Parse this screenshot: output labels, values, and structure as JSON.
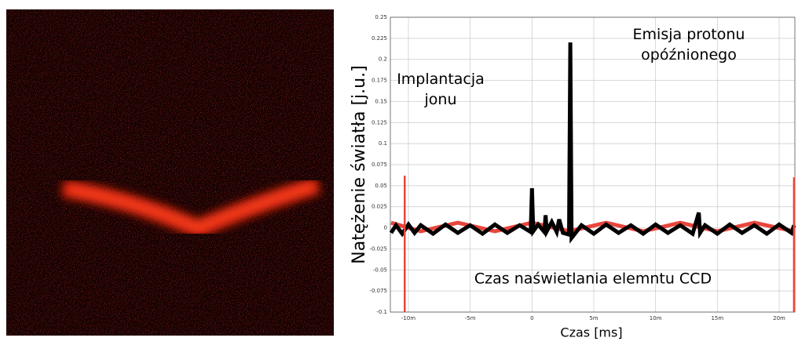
{
  "chart_data": {
    "type": "line",
    "xlabel": "Czas [ms]",
    "ylabel": "Natężenie światła [j.u.]",
    "annotations": [
      "Emisja protonu\nopóźnionego",
      "Implantacja\njonu",
      "Czas naświetlania elemntu CCD"
    ],
    "xlim": [
      -11.46,
      21.27
    ],
    "ylim": [
      -0.1,
      0.25
    ],
    "xticks": [
      {
        "value": -10,
        "label": "-10m"
      },
      {
        "value": -5,
        "label": "-5m"
      },
      0,
      {
        "value": 5,
        "label": "5m"
      },
      {
        "value": 10,
        "label": "10m"
      },
      {
        "value": 15,
        "label": "15m"
      },
      {
        "value": 20,
        "label": "20m"
      }
    ],
    "yticks": [
      -0.1,
      -0.075,
      -0.05,
      -0.025,
      0,
      0.025,
      0.05,
      0.075,
      0.1,
      0.125,
      0.15,
      0.175,
      0.2,
      0.225,
      0.25
    ],
    "grid": true,
    "series": [
      {
        "color": "#e8463c",
        "x": [
          -11.4,
          -9,
          -6,
          -3,
          0,
          3,
          6,
          9,
          12,
          15,
          18,
          21.2
        ],
        "values": [
          0.006,
          -0.004,
          0.006,
          -0.004,
          0.006,
          -0.004,
          0.006,
          -0.004,
          0.006,
          -0.004,
          0.006,
          -0.004
        ]
      },
      {
        "color": "#000000",
        "x": [
          -11.4,
          -11,
          -10.5,
          -10,
          -9.5,
          -9,
          -8,
          -7,
          -6,
          -5,
          -4,
          -3,
          -2,
          -1,
          -0.1,
          0,
          0.1,
          0.5,
          1,
          1.1,
          1.2,
          1.6,
          2,
          2.2,
          2.5,
          3.0,
          3.1,
          3.2,
          4,
          5,
          6,
          7,
          8,
          9,
          10,
          11,
          12,
          13,
          13.5,
          13.6,
          14,
          15,
          16,
          17,
          18,
          19,
          20,
          21,
          21.2
        ],
        "values": [
          -0.006,
          0.003,
          -0.007,
          0.004,
          -0.006,
          0.003,
          -0.007,
          0.004,
          -0.006,
          0.003,
          -0.007,
          0.004,
          -0.006,
          0.003,
          -0.005,
          0.047,
          -0.004,
          0.004,
          -0.005,
          0.015,
          -0.004,
          0.007,
          -0.005,
          0.01,
          -0.006,
          -0.008,
          0.22,
          -0.012,
          0.003,
          -0.007,
          0.004,
          -0.006,
          0.003,
          -0.007,
          0.004,
          -0.006,
          0.003,
          -0.007,
          0.018,
          -0.006,
          0.003,
          -0.007,
          0.004,
          -0.006,
          0.003,
          -0.007,
          0.004,
          -0.006,
          0.003
        ]
      }
    ],
    "markers": {
      "color": "#e8463c",
      "x": [
        -10.3,
        21.2
      ],
      "values": [
        0.062,
        0.06
      ]
    }
  }
}
